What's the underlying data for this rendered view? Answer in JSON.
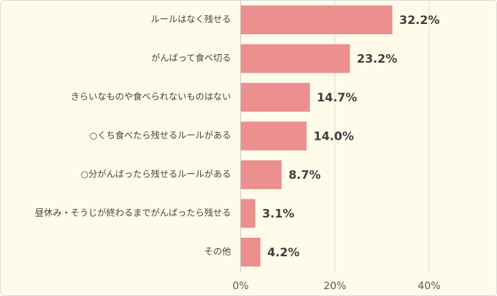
{
  "colors": {
    "bar": "#ec8f8f",
    "grid": "#d9d9d9",
    "axis": "#bfbfbf",
    "background": "#fffbea"
  },
  "chart_data": {
    "type": "bar",
    "orientation": "horizontal",
    "categories": [
      "ルールはなく残せる",
      "がんばって食べ切る",
      "きらいなものや食べられないものはない",
      "○くち食べたら残せるルールがある",
      "○分がんばったら残せるルールがある",
      "昼休み・そうじが終わるまでがんばったら残せる",
      "その他"
    ],
    "values": [
      32.2,
      23.2,
      14.7,
      14.0,
      8.7,
      3.1,
      4.2
    ],
    "value_labels": [
      "32.2%",
      "23.2%",
      "14.7%",
      "14.0%",
      "8.7%",
      "3.1%",
      "4.2%"
    ],
    "ticks": [
      0,
      20,
      40
    ],
    "tick_labels": [
      "0%",
      "20%",
      "40%"
    ],
    "xlim": [
      0,
      54
    ],
    "grid": true
  }
}
